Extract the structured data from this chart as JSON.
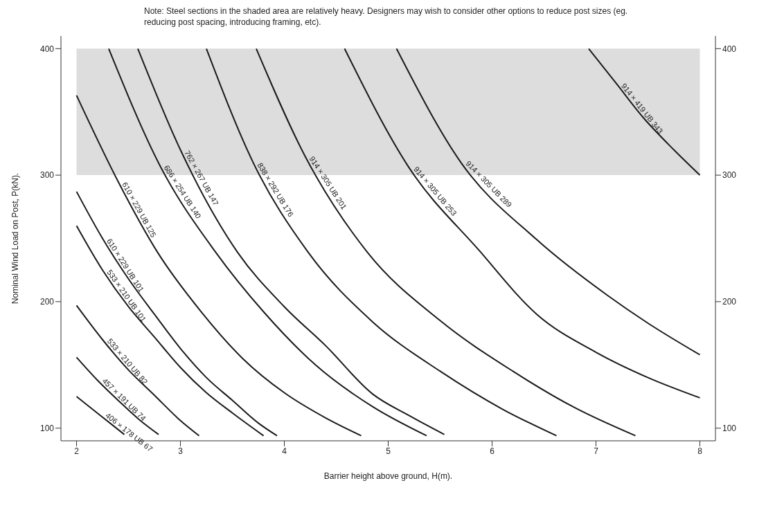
{
  "chart_data": {
    "type": "line",
    "xlabel": "Barrier height above ground, H(m).",
    "ylabel": "Nominal Wind Load on Post, P(kN).",
    "annotations": [
      "Note: Steel sections in the shaded area are relatively heavy. Designers may wish to consider other options to reduce post sizes (eg. reducing post spacing, introducing framing, etc)."
    ],
    "xlim": [
      1.85,
      8.15
    ],
    "xticks": [
      2,
      3,
      4,
      5,
      6,
      7,
      8
    ],
    "ylim": [
      90,
      410
    ],
    "yticks": [
      100,
      200,
      300,
      400
    ],
    "y2lim": [
      90,
      410
    ],
    "y2ticks": [
      100,
      200,
      300,
      400
    ],
    "grid": false,
    "legend": false,
    "marker": "none",
    "line_style": "solid",
    "bands": [
      {
        "axis": "y",
        "from": 300,
        "to": 400,
        "color": "#d4d4d4"
      }
    ],
    "series": [
      {
        "name": "406 × 178 UB 67",
        "color": "#1a1a1a",
        "x": [
          2.0,
          2.23,
          2.46
        ],
        "values": [
          125,
          110,
          95
        ]
      },
      {
        "name": "457 × 191 UB 74",
        "color": "#1a1a1a",
        "x": [
          2.0,
          2.2,
          2.4,
          2.6,
          2.79
        ],
        "values": [
          156,
          138,
          122,
          107,
          95
        ]
      },
      {
        "name": "533 × 210 UB 82",
        "color": "#1a1a1a",
        "x": [
          2.0,
          2.25,
          2.5,
          2.75,
          3.0,
          3.18
        ],
        "values": [
          197,
          170,
          146,
          126,
          106,
          94
        ]
      },
      {
        "name": "533 × 210 UB 101",
        "color": "#1a1a1a",
        "x": [
          2.0,
          2.25,
          2.5,
          2.75,
          3.0,
          3.25,
          3.5,
          3.8
        ],
        "values": [
          260,
          225,
          196,
          172,
          148,
          128,
          112,
          94
        ]
      },
      {
        "name": "610 × 229 UB 101",
        "color": "#1a1a1a",
        "x": [
          2.0,
          2.25,
          2.5,
          2.75,
          3.0,
          3.25,
          3.5,
          3.75,
          3.93
        ],
        "values": [
          287,
          250,
          218,
          190,
          163,
          140,
          122,
          104,
          94
        ]
      },
      {
        "name": "610 × 229 UB 125",
        "color": "#1a1a1a",
        "x": [
          2.0,
          2.4,
          2.78,
          3.2,
          3.6,
          4.0,
          4.4,
          4.74
        ],
        "values": [
          363,
          295,
          239,
          192,
          155,
          128,
          108,
          94
        ]
      },
      {
        "name": "686 × 254 UB 140",
        "color": "#1a1a1a",
        "x": [
          2.31,
          2.8,
          3.34,
          3.8,
          4.3,
          4.85,
          5.37
        ],
        "values": [
          400,
          308,
          239,
          192,
          150,
          117,
          94
        ]
      },
      {
        "name": "762 × 267 UB 147",
        "color": "#1a1a1a",
        "x": [
          2.59,
          3.0,
          3.55,
          4.0,
          4.4,
          4.85,
          5.2,
          5.54
        ],
        "values": [
          400,
          320,
          239,
          196,
          165,
          127,
          110,
          95
        ]
      },
      {
        "name": "838 × 292 UB 176",
        "color": "#1a1a1a",
        "x": [
          3.25,
          3.7,
          4.23,
          4.85,
          5.5,
          6.1,
          6.62
        ],
        "values": [
          400,
          310,
          239,
          184,
          145,
          115,
          94
        ]
      },
      {
        "name": "914 × 305 UB 201",
        "color": "#1a1a1a",
        "x": [
          3.73,
          4.2,
          4.8,
          5.5,
          6.2,
          6.8,
          7.38
        ],
        "values": [
          400,
          315,
          239,
          185,
          145,
          116,
          94
        ]
      },
      {
        "name": "914 × 305 UB 253",
        "color": "#1a1a1a",
        "x": [
          4.58,
          5.2,
          5.87,
          6.43,
          7.0,
          7.5,
          8.0
        ],
        "values": [
          400,
          306,
          241,
          190,
          160,
          140,
          124
        ]
      },
      {
        "name": "914 × 305 UB 289",
        "color": "#1a1a1a",
        "x": [
          5.08,
          5.7,
          6.43,
          7.11,
          7.5,
          8.0
        ],
        "values": [
          400,
          310,
          249,
          205,
          183,
          158
        ]
      },
      {
        "name": "914 × 419 UB 343",
        "color": "#1a1a1a",
        "x": [
          6.93,
          7.2,
          7.45,
          7.75,
          8.0
        ],
        "values": [
          400,
          372,
          346,
          320,
          300
        ]
      }
    ]
  }
}
